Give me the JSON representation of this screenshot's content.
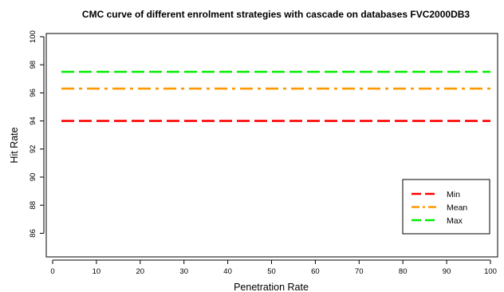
{
  "chart_data": {
    "type": "line",
    "title": "CMC curve of different enrolment strategies with cascade on databases FVC2000DB3",
    "xlabel": "Penetration Rate",
    "ylabel": "Hit Rate",
    "xlim": [
      0,
      100
    ],
    "ylim": [
      85,
      100
    ],
    "x_ticks": [
      0,
      10,
      20,
      30,
      40,
      50,
      60,
      70,
      80,
      90,
      100
    ],
    "y_ticks": [
      86,
      88,
      90,
      92,
      94,
      96,
      98,
      100
    ],
    "x": [
      2,
      100
    ],
    "series": [
      {
        "name": "Min",
        "values": [
          94.0,
          94.0
        ],
        "color": "#ff0000",
        "line_style": "dashed"
      },
      {
        "name": "Mean",
        "values": [
          96.3,
          96.3
        ],
        "color": "#ff9900",
        "line_style": "dash-dot"
      },
      {
        "name": "Max",
        "values": [
          97.5,
          97.5
        ],
        "color": "#00ee00",
        "line_style": "dashed"
      }
    ],
    "legend_position": "bottom-right",
    "grid": false
  }
}
